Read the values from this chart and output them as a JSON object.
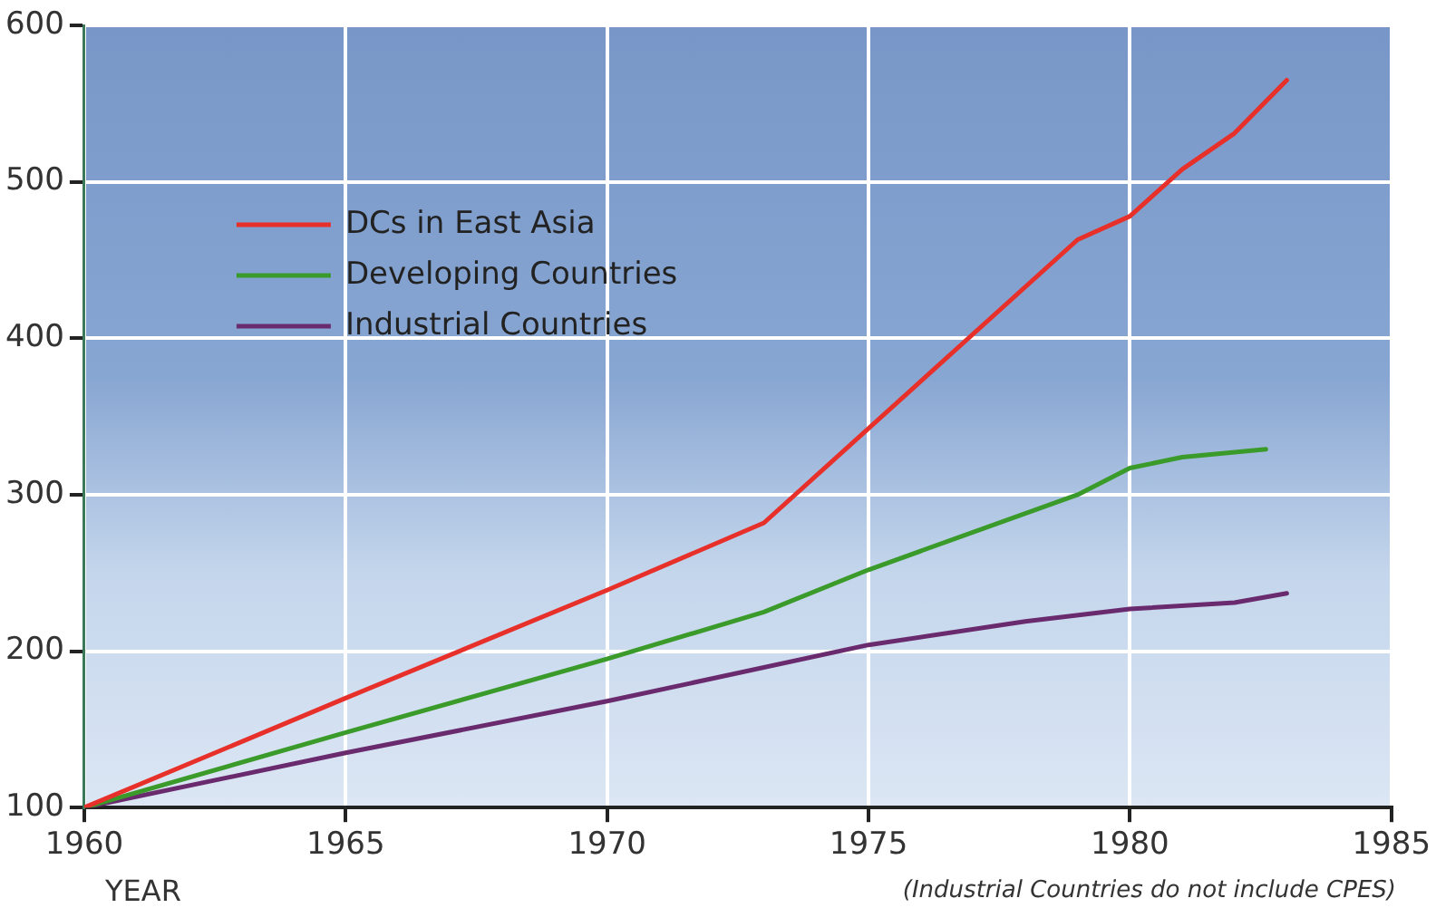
{
  "chart_data": {
    "type": "line",
    "xlabel": "YEAR",
    "annotations": [
      "(Industrial Countries do not include CPES)"
    ],
    "xlim": [
      1960,
      1985
    ],
    "xticks": [
      1960,
      1965,
      1970,
      1975,
      1980,
      1985
    ],
    "ylim": [
      100,
      600
    ],
    "yticks": [
      100,
      200,
      300,
      400,
      500,
      600
    ],
    "grid": true,
    "legend": "top left",
    "marker": "none",
    "line_style": "solid",
    "series": [
      {
        "name": "DCs in East Asia",
        "color": "#e8302a",
        "x": [
          1960,
          1965,
          1970,
          1973,
          1979,
          1980,
          1981,
          1982,
          1983
        ],
        "values": [
          100,
          170,
          239,
          282,
          463,
          478,
          508,
          531,
          565
        ]
      },
      {
        "name": "Developing Countries",
        "color": "#3a9a2a",
        "x": [
          1960,
          1965,
          1970,
          1973,
          1975,
          1979,
          1980,
          1981,
          1982.6
        ],
        "values": [
          100,
          148,
          195,
          225,
          252,
          300,
          317,
          324,
          329
        ]
      },
      {
        "name": "Industrial Countries",
        "color": "#6a2a6e",
        "x": [
          1960,
          1965,
          1970,
          1975,
          1978,
          1980,
          1982,
          1983
        ],
        "values": [
          100,
          135,
          168,
          204,
          219,
          227,
          231,
          237
        ]
      }
    ]
  }
}
